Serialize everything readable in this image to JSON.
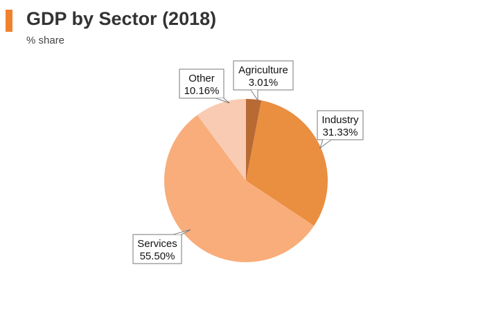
{
  "header": {
    "title": "GDP by Sector (2018)",
    "subtitle": "% share",
    "accent_color": "#f0822e"
  },
  "chart_data": {
    "type": "pie",
    "title": "GDP by Sector (2018)",
    "subtitle": "% share",
    "slices": [
      {
        "label": "Agriculture",
        "value": 3.01,
        "display": "3.01%",
        "color": "#b86a35"
      },
      {
        "label": "Industry",
        "value": 31.33,
        "display": "31.33%",
        "color": "#ea8e40"
      },
      {
        "label": "Services",
        "value": 55.5,
        "display": "55.50%",
        "color": "#f8ad7a"
      },
      {
        "label": "Other",
        "value": 10.16,
        "display": "10.16%",
        "color": "#f9cbb2"
      }
    ],
    "legend": "none",
    "data_labels": "callouts"
  }
}
